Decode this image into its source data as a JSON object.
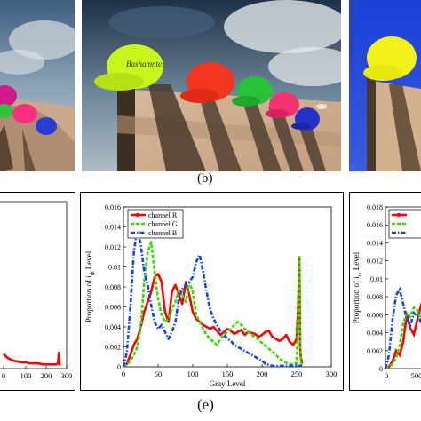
{
  "captions": {
    "top": "(b)",
    "bottom": "(e)"
  },
  "hat_text": "Bashamnte",
  "chart_data": [
    {
      "type": "line",
      "panel": "left-partial",
      "x_ticks": [
        "0",
        "100",
        "200",
        "300"
      ],
      "xlim": [
        0,
        300
      ],
      "ylim": [
        0,
        0.016
      ],
      "series": [
        {
          "name": "",
          "color": "#ff0000",
          "x": [
            0,
            20,
            40,
            60,
            80,
            100,
            120,
            140,
            160,
            180,
            200,
            220,
            240,
            250,
            253,
            255,
            258
          ],
          "y": [
            0.0014,
            0.001,
            0.0008,
            0.0007,
            0.0006,
            0.0006,
            0.0005,
            0.0005,
            0.0005,
            0.0004,
            0.0004,
            0.0004,
            0.0004,
            0.0005,
            0.0012,
            0.0016,
            0.0003
          ]
        }
      ]
    },
    {
      "type": "line",
      "panel": "center",
      "xlabel": "Gray Level",
      "ylabel": "Proportion of",
      "ylabel_sub": "i",
      "ylabel_subsub": "th",
      "ylabel_end": "Level",
      "xlim": [
        0,
        300
      ],
      "ylim": [
        0,
        0.016
      ],
      "x_ticks": [
        "0",
        "50",
        "100",
        "150",
        "200",
        "250",
        "300"
      ],
      "y_ticks": [
        "0",
        "0.002",
        "0.004",
        "0.006",
        "0.008",
        "0.01",
        "0.012",
        "0.014",
        "0.016"
      ],
      "legend": [
        "channel R",
        "channel G",
        "channel B"
      ],
      "legend_position": "top-left",
      "series": [
        {
          "name": "channel R",
          "color": "#ff0000",
          "x": [
            0,
            5,
            10,
            15,
            20,
            25,
            30,
            35,
            40,
            45,
            50,
            55,
            60,
            65,
            70,
            75,
            80,
            85,
            90,
            95,
            100,
            105,
            110,
            115,
            120,
            125,
            130,
            135,
            140,
            145,
            150,
            155,
            160,
            165,
            170,
            175,
            180,
            185,
            190,
            195,
            200,
            205,
            210,
            215,
            220,
            225,
            230,
            235,
            240,
            245,
            250,
            252,
            254,
            255,
            256,
            258
          ],
          "y": [
            0,
            0.0003,
            0.0012,
            0.0022,
            0.0028,
            0.004,
            0.0055,
            0.0065,
            0.0075,
            0.009,
            0.0093,
            0.0085,
            0.0055,
            0.0045,
            0.0075,
            0.0082,
            0.0072,
            0.0063,
            0.0085,
            0.0072,
            0.0055,
            0.0048,
            0.0045,
            0.0042,
            0.004,
            0.0038,
            0.004,
            0.0036,
            0.0032,
            0.0035,
            0.0038,
            0.0036,
            0.0033,
            0.0035,
            0.0037,
            0.0032,
            0.0035,
            0.0034,
            0.0033,
            0.003,
            0.0032,
            0.0035,
            0.0036,
            0.003,
            0.0028,
            0.0026,
            0.0028,
            0.0032,
            0.0025,
            0.0022,
            0.0028,
            0.006,
            0.0108,
            0.002,
            0.001,
            0.0003
          ]
        },
        {
          "name": "channel G",
          "color": "#33dd00",
          "x": [
            0,
            5,
            10,
            15,
            20,
            25,
            30,
            35,
            40,
            45,
            50,
            55,
            60,
            65,
            70,
            75,
            80,
            85,
            90,
            95,
            100,
            105,
            110,
            115,
            120,
            125,
            130,
            135,
            140,
            145,
            150,
            155,
            160,
            165,
            170,
            175,
            180,
            185,
            190,
            195,
            200,
            205,
            210,
            215,
            220,
            225,
            230,
            235,
            240,
            245,
            250,
            252,
            254,
            255,
            256,
            258
          ],
          "y": [
            0,
            0.0002,
            0.0006,
            0.0012,
            0.002,
            0.004,
            0.0085,
            0.0115,
            0.0125,
            0.0095,
            0.0068,
            0.0052,
            0.0045,
            0.0048,
            0.0058,
            0.0065,
            0.0078,
            0.0072,
            0.0065,
            0.0085,
            0.0075,
            0.0052,
            0.0045,
            0.0038,
            0.0032,
            0.0028,
            0.0025,
            0.0022,
            0.0028,
            0.0032,
            0.0035,
            0.0038,
            0.0042,
            0.0045,
            0.0042,
            0.0038,
            0.0035,
            0.0032,
            0.003,
            0.0027,
            0.0024,
            0.0021,
            0.0018,
            0.0015,
            0.0012,
            0.0008,
            0.0006,
            0.0004,
            0.0003,
            0.0002,
            0.0004,
            0.005,
            0.011,
            0.003,
            0.0005,
            0.0001
          ]
        },
        {
          "name": "channel B",
          "color": "#1144ee",
          "x": [
            0,
            5,
            10,
            15,
            20,
            25,
            30,
            35,
            40,
            45,
            50,
            55,
            60,
            65,
            70,
            75,
            80,
            85,
            90,
            95,
            100,
            105,
            110,
            115,
            120,
            125,
            130,
            135,
            140,
            145,
            150,
            155,
            160,
            165,
            170,
            175,
            180,
            185,
            190,
            195,
            200,
            205,
            210,
            215,
            220,
            225,
            230,
            235,
            240,
            245,
            250,
            255,
            258
          ],
          "y": [
            0,
            0.0015,
            0.006,
            0.0115,
            0.0138,
            0.0122,
            0.0095,
            0.0082,
            0.0062,
            0.0045,
            0.0038,
            0.0042,
            0.0035,
            0.0028,
            0.0035,
            0.0045,
            0.0068,
            0.0078,
            0.0082,
            0.0085,
            0.009,
            0.0105,
            0.0112,
            0.0095,
            0.0075,
            0.0058,
            0.0048,
            0.0042,
            0.0036,
            0.0032,
            0.0028,
            0.0026,
            0.0022,
            0.002,
            0.0018,
            0.0016,
            0.0014,
            0.0012,
            0.001,
            0.0008,
            0.0006,
            0.0003,
            0.0002,
            0.0001,
            0.0001,
            0.0001,
            0.0001,
            0.0001,
            0.0001,
            0.0001,
            0.0001,
            0.0001,
            0.0001
          ]
        }
      ]
    },
    {
      "type": "line",
      "panel": "right-partial",
      "ylabel": "Proportion of",
      "ylabel_sub": "i",
      "ylabel_subsub": "th",
      "ylabel_end": "Level",
      "ylim": [
        0,
        0.018
      ],
      "y_ticks": [
        "0",
        "0.002",
        "0.004",
        "0.006",
        "0.008",
        "0.01",
        "0.012",
        "0.014",
        "0.016",
        "0.018"
      ],
      "x_ticks": [
        "0",
        "500"
      ],
      "legend": [
        "",
        "",
        ""
      ],
      "series": [
        {
          "name": "",
          "color": "#ff0000",
          "x": [
            0,
            5,
            10,
            15,
            20,
            25,
            30,
            35,
            40,
            45,
            50,
            55,
            60,
            65,
            70,
            75,
            80
          ],
          "y": [
            0,
            0.0002,
            0.0008,
            0.002,
            0.0015,
            0.003,
            0.006,
            0.0045,
            0.0038,
            0.0055,
            0.007,
            0.0062,
            0.0078,
            0.0085,
            0.0092,
            0.0088,
            0.0095
          ]
        },
        {
          "name": "",
          "color": "#33dd00",
          "x": [
            0,
            5,
            10,
            15,
            20,
            25,
            30,
            35,
            40,
            45,
            50,
            55,
            60,
            65,
            70,
            75,
            80
          ],
          "y": [
            0,
            0.0002,
            0.0005,
            0.0012,
            0.0025,
            0.005,
            0.0062,
            0.0058,
            0.0068,
            0.0065,
            0.0055,
            0.0062,
            0.007,
            0.0115,
            0.0082,
            0.0065,
            0.007
          ]
        },
        {
          "name": "",
          "color": "#1144ee",
          "x": [
            0,
            5,
            10,
            15,
            20,
            25,
            30,
            35,
            40,
            45,
            50,
            55,
            60,
            65,
            70,
            75,
            80
          ],
          "y": [
            0,
            0.0015,
            0.0055,
            0.0082,
            0.0088,
            0.0072,
            0.0055,
            0.0048,
            0.0062,
            0.0058,
            0.0052,
            0.0045,
            0.0042,
            0.0048,
            0.0052,
            0.0045,
            0.004
          ]
        }
      ]
    }
  ]
}
